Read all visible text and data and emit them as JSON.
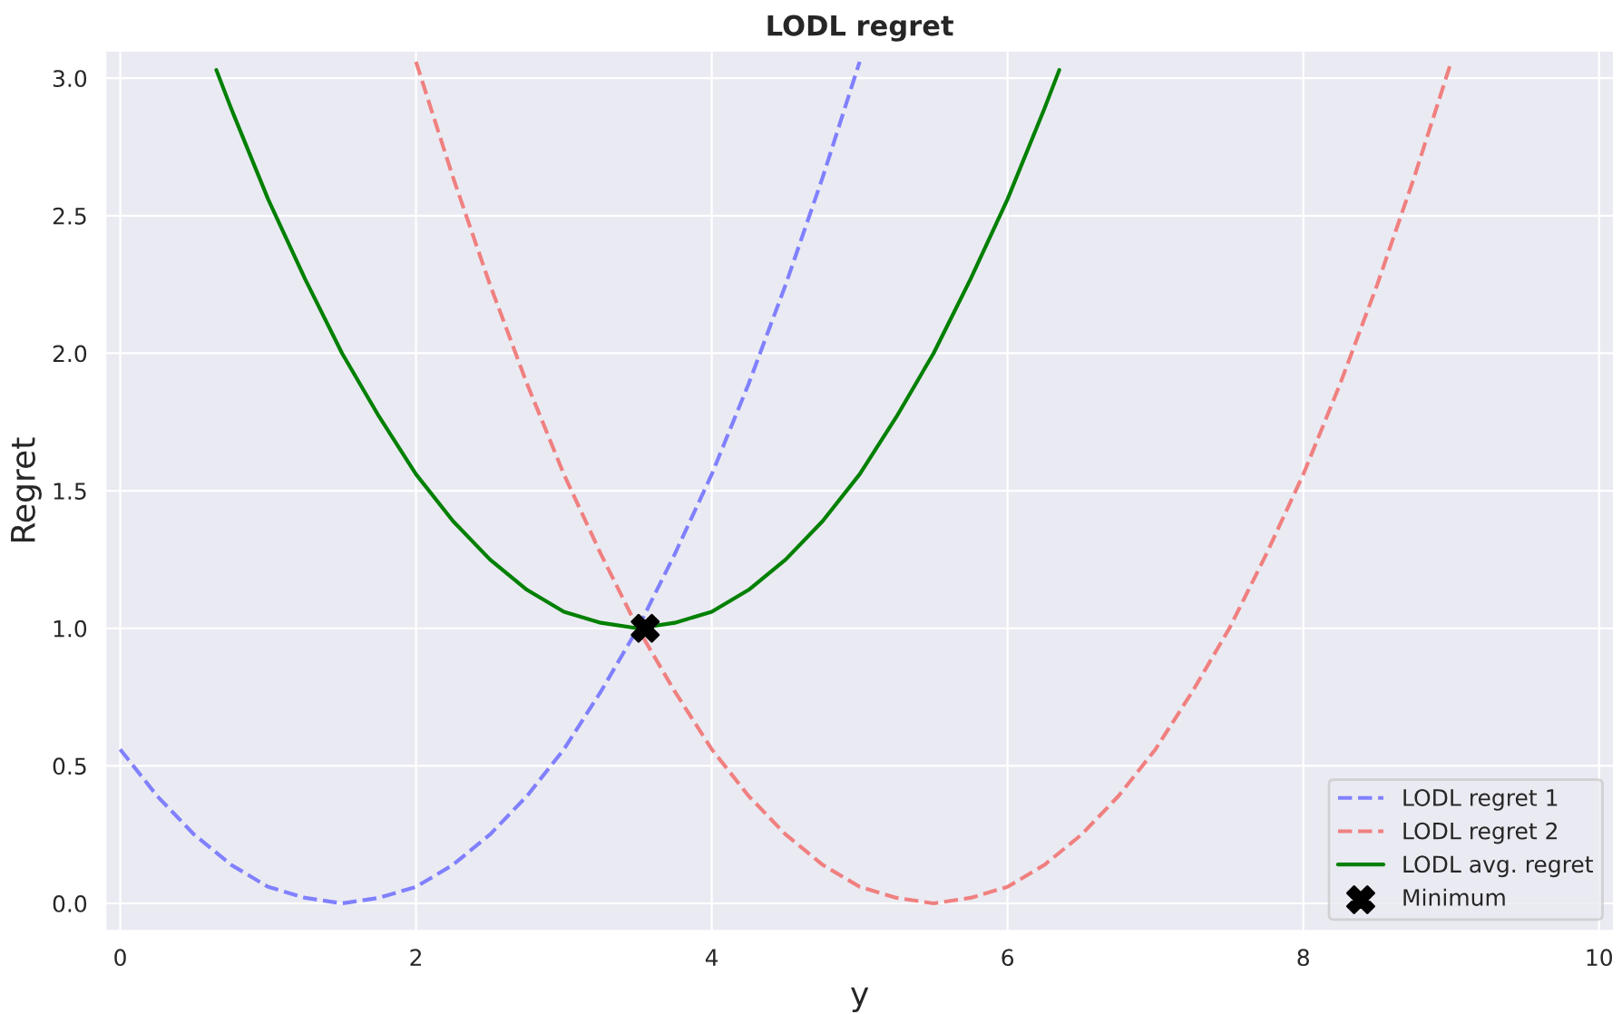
{
  "chart_data": {
    "type": "line",
    "title": "LODL regret",
    "xlabel": "y",
    "ylabel": "Regret",
    "xlim": [
      -0.1,
      10.1
    ],
    "ylim": [
      -0.1,
      3.1
    ],
    "xticks": [
      0,
      2,
      4,
      6,
      8,
      10
    ],
    "yticks": [
      {
        "value": 0,
        "label": "0.0"
      },
      0.5,
      {
        "value": 1,
        "label": "1.0"
      },
      1.5,
      {
        "value": 2,
        "label": "2.0"
      },
      2.5,
      {
        "value": 3,
        "label": "3.0"
      }
    ],
    "grid": true,
    "legend": "bottom right",
    "series": [
      {
        "name": "LODL regret 1",
        "color": "#8080ff",
        "line_style": "dashed",
        "x": [
          0,
          0.25,
          0.5,
          0.75,
          1,
          1.25,
          1.5,
          1.75,
          2,
          2.25,
          2.5,
          2.75,
          3,
          3.25,
          3.5,
          3.75,
          4,
          4.25,
          4.5,
          4.75,
          5
        ],
        "values": [
          0.56,
          0.39,
          0.25,
          0.14,
          0.06,
          0.02,
          0,
          0.02,
          0.06,
          0.14,
          0.25,
          0.39,
          0.56,
          0.77,
          1,
          1.27,
          1.56,
          1.89,
          2.25,
          2.64,
          3.06
        ]
      },
      {
        "name": "LODL regret 2",
        "color": "#f08080",
        "line_style": "dashed",
        "x": [
          2,
          2.25,
          2.5,
          2.75,
          3,
          3.25,
          3.5,
          3.75,
          4,
          4.25,
          4.5,
          4.75,
          5,
          5.25,
          5.5,
          5.75,
          6,
          6.25,
          6.5,
          6.75,
          7,
          7.25,
          7.5,
          7.75,
          8,
          8.25,
          8.5,
          8.75,
          9
        ],
        "values": [
          3.06,
          2.64,
          2.25,
          1.89,
          1.56,
          1.27,
          1,
          0.77,
          0.56,
          0.39,
          0.25,
          0.14,
          0.06,
          0.02,
          0,
          0.02,
          0.06,
          0.14,
          0.25,
          0.39,
          0.56,
          0.77,
          1,
          1.27,
          1.56,
          1.89,
          2.25,
          2.64,
          3.06
        ]
      },
      {
        "name": "LODL avg. regret",
        "color": "#008000",
        "line_style": "solid",
        "x": [
          0.65,
          0.75,
          1,
          1.25,
          1.5,
          1.75,
          2,
          2.25,
          2.5,
          2.75,
          3,
          3.25,
          3.5,
          3.75,
          4,
          4.25,
          4.5,
          4.75,
          5,
          5.25,
          5.5,
          5.75,
          6,
          6.25,
          6.35
        ],
        "values": [
          3.03,
          2.89,
          2.56,
          2.27,
          2,
          1.77,
          1.56,
          1.39,
          1.25,
          1.14,
          1.06,
          1.02,
          1,
          1.02,
          1.06,
          1.14,
          1.25,
          1.39,
          1.56,
          1.77,
          2,
          2.27,
          2.56,
          2.89,
          3.03
        ]
      },
      {
        "name": "Minimum",
        "type": "scatter",
        "color": "#000000",
        "marker": "cross",
        "x": [
          3.55
        ],
        "values": [
          1.0
        ]
      }
    ]
  }
}
